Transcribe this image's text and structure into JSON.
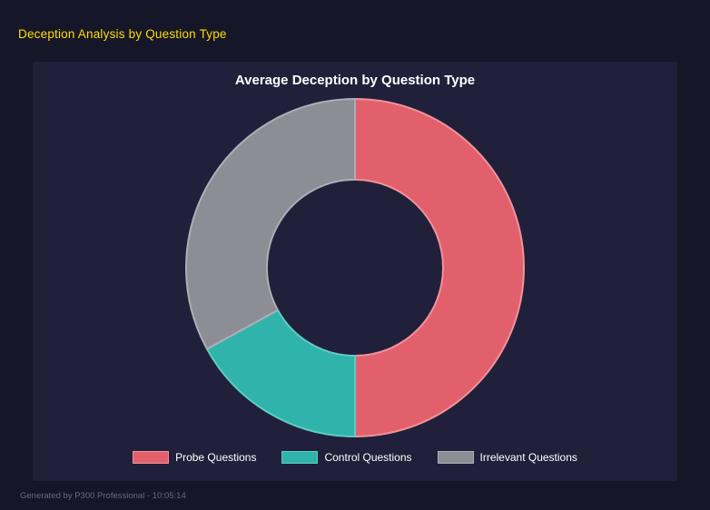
{
  "page": {
    "title": "Deception Analysis by Question Type",
    "footer": "Generated by P300 Professional - 10:05:14"
  },
  "chart_data": {
    "type": "pie",
    "donut": true,
    "title": "Average Deception by Question Type",
    "categories": [
      "Probe Questions",
      "Control Questions",
      "Irrelevant Questions"
    ],
    "values": [
      50,
      17,
      33
    ],
    "values_note": "percent of circle, estimated from arc angles",
    "colors": [
      "#e2606c",
      "#2fb3aa",
      "#8d8d95"
    ],
    "border_colors": [
      "#f1929b",
      "#5fccc4",
      "#aeaeb6"
    ],
    "legend_position": "bottom",
    "hole_ratio": 0.52,
    "start_angle_deg": 0,
    "direction": "clockwise"
  },
  "theme": {
    "background": "#161629",
    "panel": "#20203a",
    "page_title_color": "#ffdd00",
    "chart_title_color": "#ffffff",
    "legend_text_color": "#ffffff",
    "footer_color": "#69697c"
  }
}
